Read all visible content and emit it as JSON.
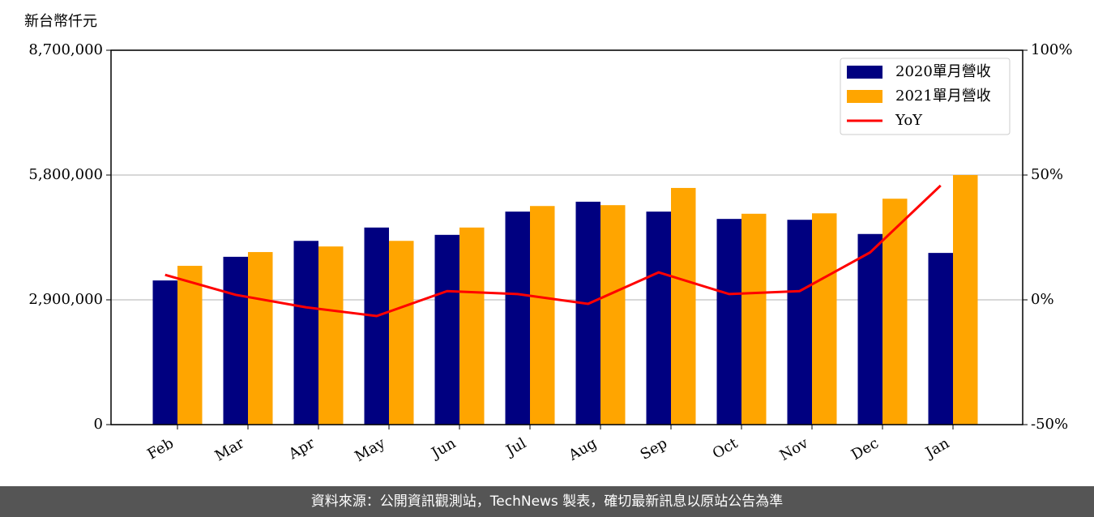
{
  "chart_data": {
    "type": "bar-line",
    "y_label": "新台幣仟元",
    "categories": [
      "Feb",
      "Mar",
      "Apr",
      "May",
      "Jun",
      "Jul",
      "Aug",
      "Sep",
      "Oct",
      "Nov",
      "Dec",
      "Jan"
    ],
    "series": [
      {
        "name": "2020單月營收",
        "color": "#000080",
        "type": "bar",
        "values": [
          3350000,
          3900000,
          4270000,
          4580000,
          4410000,
          4950000,
          5180000,
          4950000,
          4780000,
          4760000,
          4430000,
          3990000
        ]
      },
      {
        "name": "2021單月營收",
        "color": "#FFA500",
        "type": "bar",
        "values": [
          3690000,
          4010000,
          4140000,
          4270000,
          4580000,
          5080000,
          5100000,
          5500000,
          4900000,
          4910000,
          5250000,
          5800000
        ]
      },
      {
        "name": "YoY",
        "color": "#FF0000",
        "type": "line",
        "axis": "y2",
        "values": [
          10,
          2,
          -3,
          -6.5,
          3.5,
          2.3,
          -1.6,
          11,
          2.3,
          3.5,
          19,
          45.8
        ]
      }
    ],
    "ylim": [
      0,
      8700000
    ],
    "yticks": [
      0,
      {
        "value": 2900000,
        "label": "2,900,000"
      },
      {
        "value": 5800000,
        "label": "5,800,000"
      },
      {
        "value": 8700000,
        "label": "8,700,000"
      }
    ],
    "y2lim": [
      -50,
      100
    ],
    "y2ticks": [
      {
        "value": -50,
        "label": "-50%"
      },
      {
        "value": 0,
        "label": "0%"
      },
      {
        "value": 50,
        "label": "50%"
      },
      {
        "value": 100,
        "label": "100%"
      }
    ],
    "grid": true,
    "legend": "upper right"
  },
  "footer": "資料來源：公開資訊觀測站，TechNews 製表，確切最新訊息以原站公告為準"
}
